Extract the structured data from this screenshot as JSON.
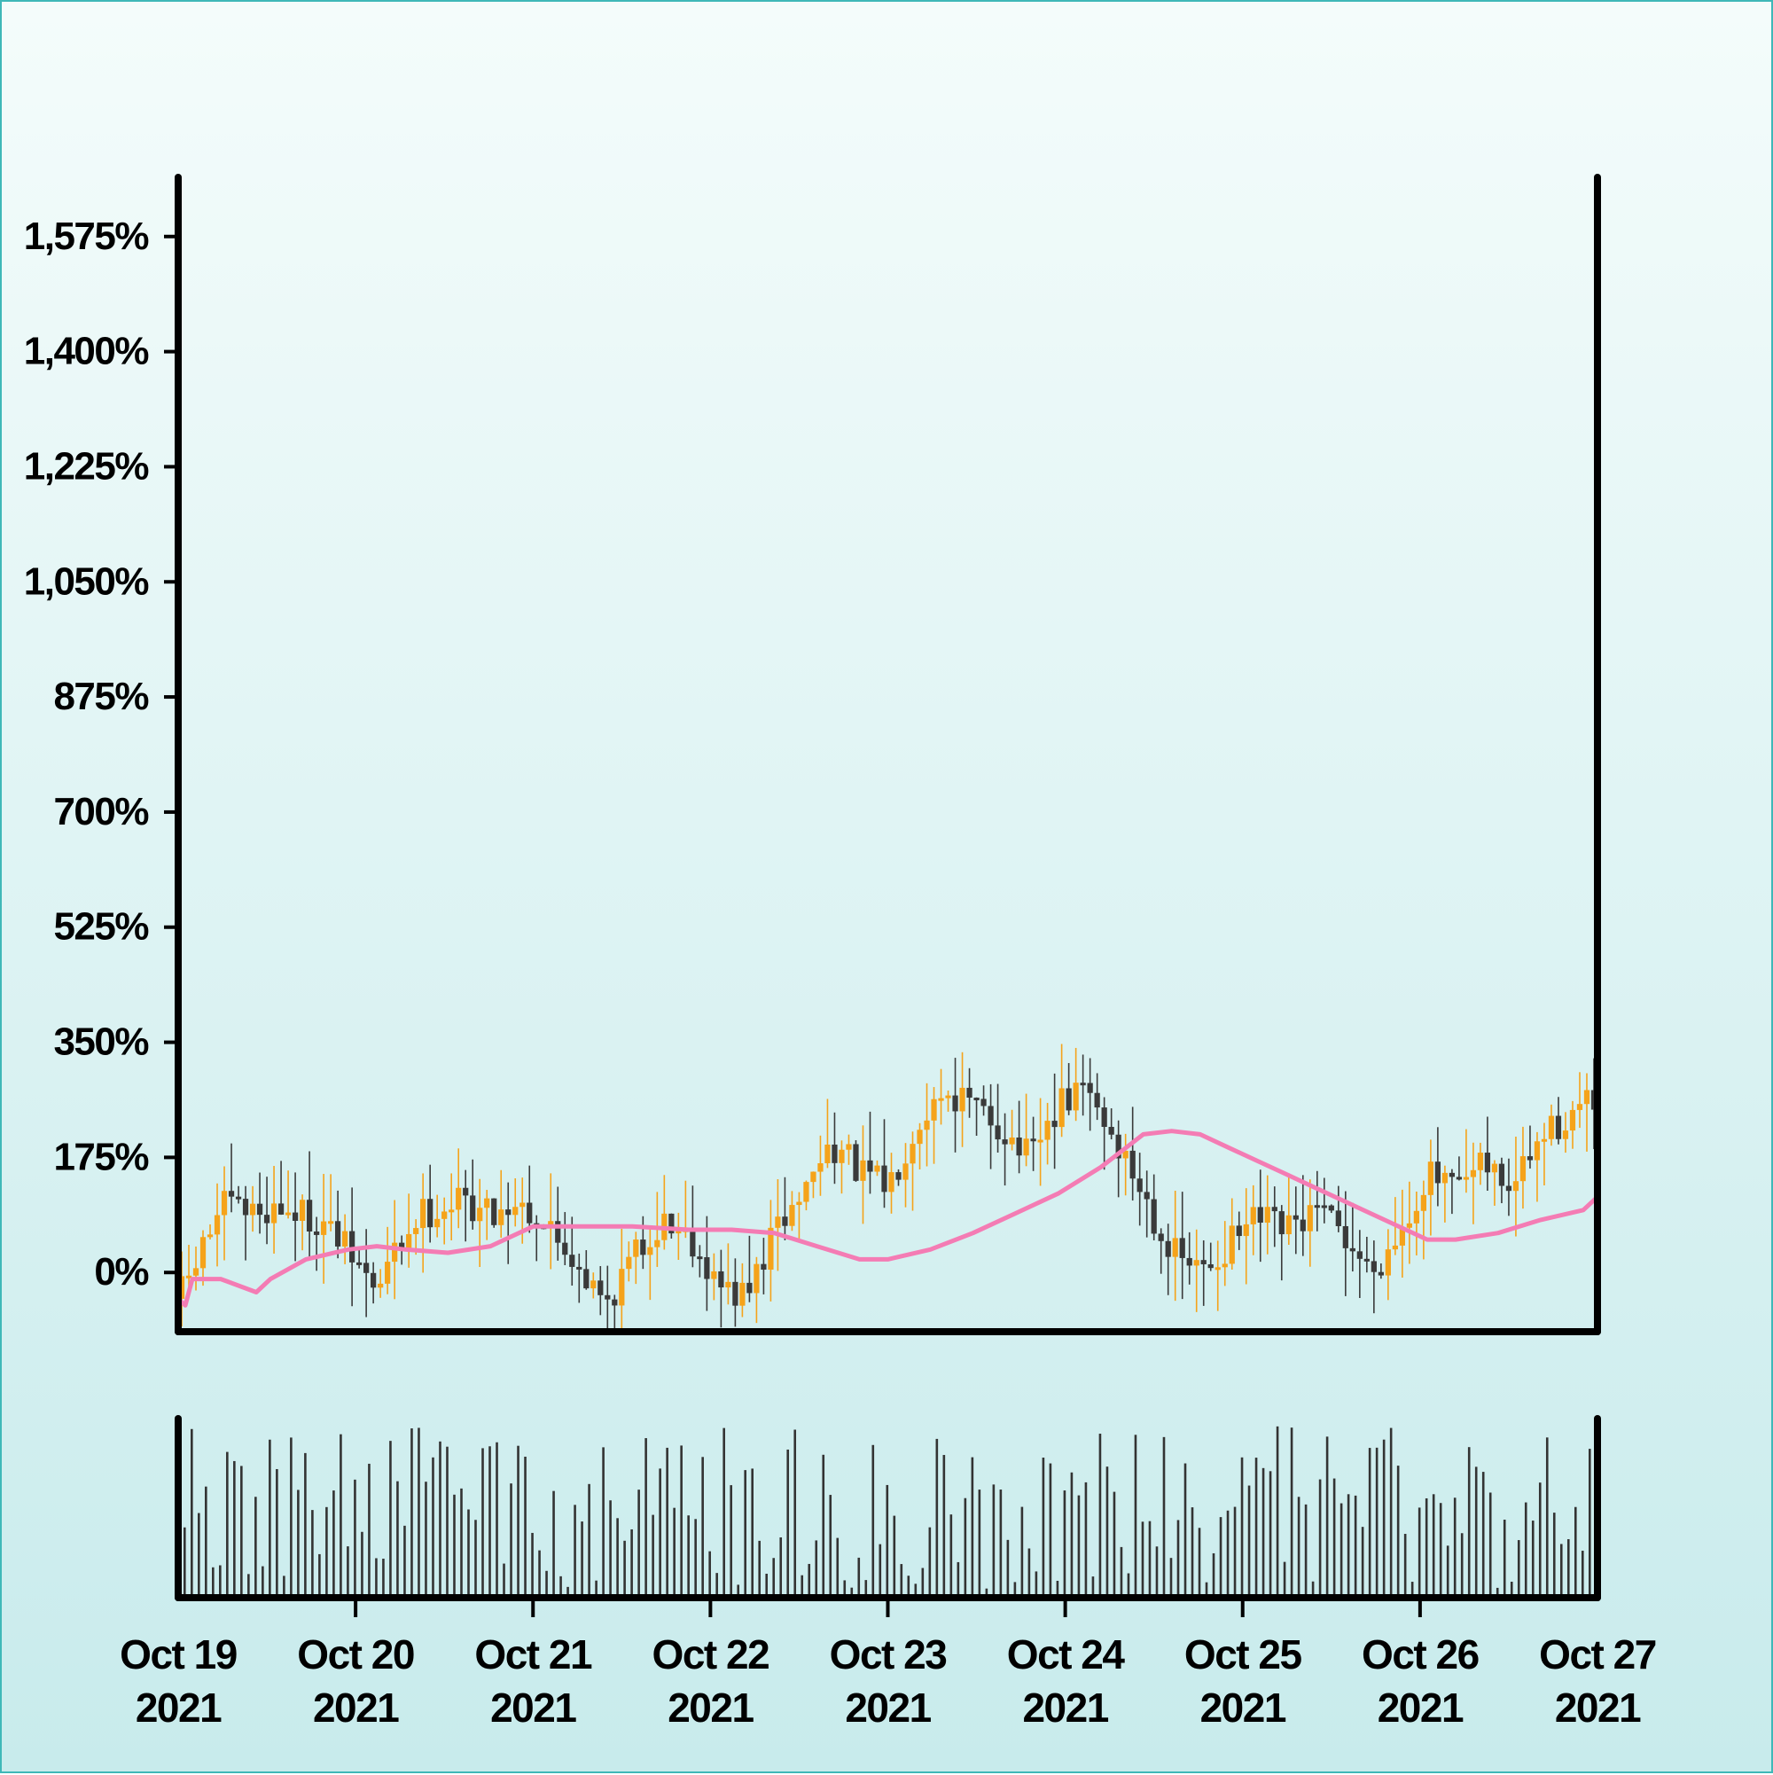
{
  "chart_data": {
    "type": "candlestick",
    "title": "",
    "xlabel": "",
    "ylabel": "",
    "y_unit": "%",
    "y_ticks": [
      "0%",
      "175%",
      "350%",
      "525%",
      "700%",
      "875%",
      "1,050%",
      "1,225%",
      "1,400%",
      "1,575%"
    ],
    "y_tick_values": [
      0,
      175,
      350,
      525,
      700,
      875,
      1050,
      1225,
      1400,
      1575
    ],
    "ylim": [
      -90,
      1665
    ],
    "x_range": [
      "2021-10-19",
      "2021-10-27"
    ],
    "x_ticks": [
      {
        "line1": "Oct 19",
        "line2": "2021"
      },
      {
        "line1": "Oct 20",
        "line2": "2021"
      },
      {
        "line1": "Oct 21",
        "line2": "2021"
      },
      {
        "line1": "Oct 22",
        "line2": "2021"
      },
      {
        "line1": "Oct 23",
        "line2": "2021"
      },
      {
        "line1": "Oct 24",
        "line2": "2021"
      },
      {
        "line1": "Oct 25",
        "line2": "2021"
      },
      {
        "line1": "Oct 26",
        "line2": "2021"
      },
      {
        "line1": "Oct 27",
        "line2": "2021"
      }
    ],
    "close_trend": [
      [
        0.0,
        -40
      ],
      [
        0.1,
        0
      ],
      [
        0.3,
        100
      ],
      [
        0.5,
        90
      ],
      [
        0.7,
        100
      ],
      [
        1.0,
        80
      ],
      [
        1.2,
        30
      ],
      [
        1.4,
        -30
      ],
      [
        1.5,
        20
      ],
      [
        1.7,
        90
      ],
      [
        2.0,
        110
      ],
      [
        2.2,
        90
      ],
      [
        2.4,
        110
      ],
      [
        2.6,
        70
      ],
      [
        2.8,
        20
      ],
      [
        3.0,
        -50
      ],
      [
        3.2,
        20
      ],
      [
        3.4,
        80
      ],
      [
        3.6,
        60
      ],
      [
        3.8,
        -20
      ],
      [
        4.0,
        -40
      ],
      [
        4.2,
        60
      ],
      [
        4.4,
        120
      ],
      [
        4.6,
        200
      ],
      [
        4.8,
        150
      ],
      [
        5.0,
        130
      ],
      [
        5.2,
        230
      ],
      [
        5.4,
        280
      ],
      [
        5.6,
        250
      ],
      [
        5.8,
        220
      ],
      [
        6.0,
        170
      ],
      [
        6.2,
        250
      ],
      [
        6.4,
        280
      ],
      [
        6.6,
        200
      ],
      [
        6.8,
        120
      ],
      [
        7.0,
        30
      ],
      [
        7.2,
        0
      ],
      [
        7.4,
        40
      ],
      [
        7.6,
        80
      ],
      [
        7.8,
        60
      ],
      [
        8.0,
        90
      ],
      [
        8.2,
        60
      ],
      [
        8.4,
        0
      ],
      [
        8.6,
        60
      ],
      [
        8.8,
        150
      ],
      [
        9.0,
        120
      ],
      [
        9.2,
        160
      ],
      [
        9.4,
        130
      ],
      [
        9.6,
        200
      ],
      [
        9.8,
        240
      ],
      [
        10.0,
        260
      ]
    ],
    "moving_average": {
      "values": [
        [
          0.0,
          -40
        ],
        [
          0.05,
          -50
        ],
        [
          0.1,
          -10
        ],
        [
          0.3,
          -10
        ],
        [
          0.55,
          -30
        ],
        [
          0.65,
          -10
        ],
        [
          0.9,
          20
        ],
        [
          1.2,
          35
        ],
        [
          1.4,
          40
        ],
        [
          1.6,
          35
        ],
        [
          1.9,
          30
        ],
        [
          2.2,
          40
        ],
        [
          2.5,
          70
        ],
        [
          2.8,
          70
        ],
        [
          3.2,
          70
        ],
        [
          3.6,
          65
        ],
        [
          3.9,
          65
        ],
        [
          4.2,
          60
        ],
        [
          4.5,
          40
        ],
        [
          4.8,
          20
        ],
        [
          5.0,
          20
        ],
        [
          5.3,
          35
        ],
        [
          5.6,
          60
        ],
        [
          5.9,
          90
        ],
        [
          6.2,
          120
        ],
        [
          6.5,
          160
        ],
        [
          6.8,
          210
        ],
        [
          7.0,
          215
        ],
        [
          7.2,
          210
        ],
        [
          7.4,
          190
        ],
        [
          7.6,
          170
        ],
        [
          7.8,
          150
        ],
        [
          8.0,
          130
        ],
        [
          8.2,
          110
        ],
        [
          8.5,
          80
        ],
        [
          8.8,
          50
        ],
        [
          9.0,
          50
        ],
        [
          9.3,
          60
        ],
        [
          9.6,
          80
        ],
        [
          9.9,
          95
        ],
        [
          10.0,
          115
        ]
      ]
    },
    "colors": {
      "up_candle": "#f5a31a",
      "down_candle": "#3a3a3a",
      "moving_average": "#f47cb4",
      "volume": "#333333",
      "axes": "#000000",
      "background_top": "#f4fcfb",
      "background_bottom": "#c8ebec"
    },
    "volume_panel": true,
    "grid": false,
    "legend": "none"
  }
}
